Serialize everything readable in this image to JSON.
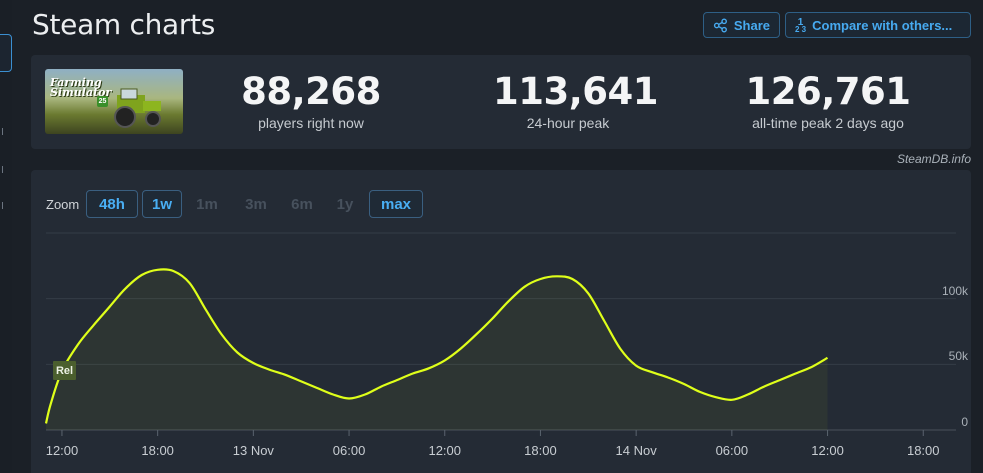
{
  "page": {
    "title": "Steam charts"
  },
  "actions": {
    "share_label": "Share",
    "compare_label": "Compare with others..."
  },
  "game": {
    "capsule_logo_line1": "Farming",
    "capsule_logo_line2": "Simulator",
    "capsule_badge": "25"
  },
  "stats": [
    {
      "value": "88,268",
      "label": "players right now"
    },
    {
      "value": "113,641",
      "label": "24-hour peak"
    },
    {
      "value": "126,761",
      "label": "all-time peak 2 days ago"
    }
  ],
  "credit": "SteamDB.info",
  "zoom": {
    "label": "Zoom",
    "options": [
      {
        "label": "48h",
        "enabled": true
      },
      {
        "label": "1w",
        "enabled": true
      },
      {
        "label": "1m",
        "enabled": false
      },
      {
        "label": "3m",
        "enabled": false
      },
      {
        "label": "6m",
        "enabled": false
      },
      {
        "label": "1y",
        "enabled": false
      },
      {
        "label": "max",
        "enabled": true
      }
    ]
  },
  "chart_data": {
    "type": "area",
    "series_color": "#dfff1a",
    "ylim": [
      0,
      150000
    ],
    "y_ticks": [
      {
        "value": 0,
        "label": "0"
      },
      {
        "value": 50000,
        "label": "50k"
      },
      {
        "value": 100000,
        "label": "100k"
      }
    ],
    "x_range_hours": [
      11,
      59.6
    ],
    "x_ticks": [
      {
        "hour": 12,
        "label": "12:00"
      },
      {
        "hour": 18,
        "label": "18:00"
      },
      {
        "hour": 24,
        "label": "13 Nov"
      },
      {
        "hour": 30,
        "label": "06:00"
      },
      {
        "hour": 36,
        "label": "12:00"
      },
      {
        "hour": 42,
        "label": "18:00"
      },
      {
        "hour": 48,
        "label": "14 Nov"
      },
      {
        "hour": 54,
        "label": "06:00"
      },
      {
        "hour": 60,
        "label": "12:00"
      },
      {
        "hour": 66,
        "label": "18:00"
      }
    ],
    "annotations": [
      {
        "hour": 11.2,
        "label": "Rel"
      }
    ],
    "points": [
      [
        11,
        5000
      ],
      [
        11.3,
        20000
      ],
      [
        12,
        45000
      ],
      [
        13,
        65000
      ],
      [
        14,
        80000
      ],
      [
        15,
        94000
      ],
      [
        16,
        108000
      ],
      [
        17,
        118000
      ],
      [
        18,
        122000
      ],
      [
        19,
        121000
      ],
      [
        20,
        112000
      ],
      [
        21,
        92000
      ],
      [
        22,
        73000
      ],
      [
        23,
        59000
      ],
      [
        24,
        51000
      ],
      [
        25,
        46000
      ],
      [
        26,
        42000
      ],
      [
        27,
        37000
      ],
      [
        28,
        32000
      ],
      [
        29,
        27000
      ],
      [
        30,
        24000
      ],
      [
        31,
        27000
      ],
      [
        32,
        33000
      ],
      [
        33,
        38000
      ],
      [
        34,
        43000
      ],
      [
        35,
        47000
      ],
      [
        36,
        53000
      ],
      [
        37,
        62000
      ],
      [
        38,
        73000
      ],
      [
        39,
        85000
      ],
      [
        40,
        98000
      ],
      [
        41,
        109000
      ],
      [
        42,
        115000
      ],
      [
        43,
        117000
      ],
      [
        44,
        115000
      ],
      [
        45,
        104000
      ],
      [
        46,
        83000
      ],
      [
        47,
        62000
      ],
      [
        48,
        49000
      ],
      [
        49,
        44000
      ],
      [
        50,
        40000
      ],
      [
        51,
        35000
      ],
      [
        52,
        29000
      ],
      [
        53,
        25000
      ],
      [
        54,
        23000
      ],
      [
        55,
        27000
      ],
      [
        56,
        33000
      ],
      [
        57,
        38000
      ],
      [
        58,
        43000
      ],
      [
        59,
        48000
      ],
      [
        60,
        55000
      ]
    ]
  }
}
